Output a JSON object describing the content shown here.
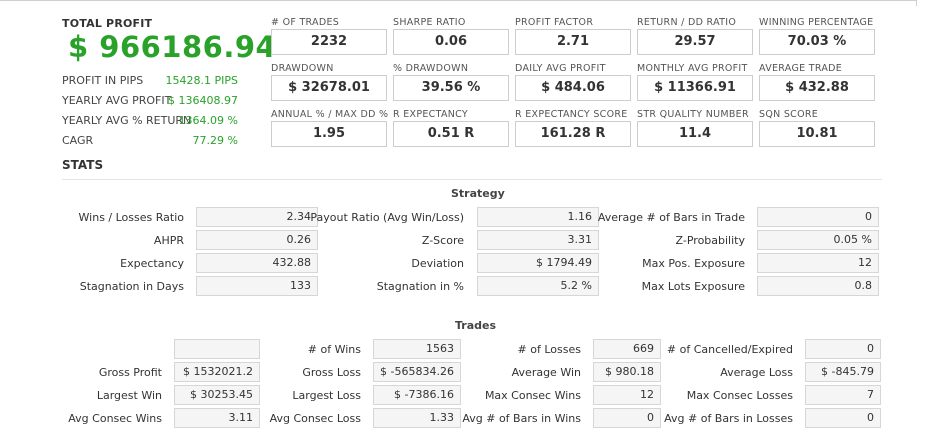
{
  "summary": {
    "total_profit_label": "TOTAL PROFIT",
    "total_profit_value": "$ 966186.94",
    "rows": [
      {
        "label": "PROFIT IN PIPS",
        "value": "15428.1 PIPS"
      },
      {
        "label": "YEARLY AVG PROFIT",
        "value": "$ 136408.97"
      },
      {
        "label": "YEARLY AVG % RETURN",
        "value": "1364.09 %"
      },
      {
        "label": "CAGR",
        "value": "77.29 %"
      }
    ]
  },
  "metrics": [
    {
      "label": "# OF TRADES",
      "value": "2232"
    },
    {
      "label": "SHARPE RATIO",
      "value": "0.06"
    },
    {
      "label": "PROFIT FACTOR",
      "value": "2.71"
    },
    {
      "label": "RETURN / DD RATIO",
      "value": "29.57"
    },
    {
      "label": "WINNING PERCENTAGE",
      "value": "70.03 %"
    },
    {
      "label": "DRAWDOWN",
      "value": "$ 32678.01"
    },
    {
      "label": "% DRAWDOWN",
      "value": "39.56 %"
    },
    {
      "label": "DAILY AVG PROFIT",
      "value": "$ 484.06"
    },
    {
      "label": "MONTHLY AVG PROFIT",
      "value": "$ 11366.91"
    },
    {
      "label": "AVERAGE TRADE",
      "value": "$ 432.88"
    },
    {
      "label": "ANNUAL % / MAX DD %",
      "value": "1.95"
    },
    {
      "label": "R EXPECTANCY",
      "value": "0.51 R"
    },
    {
      "label": "R EXPECTANCY SCORE",
      "value": "161.28 R"
    },
    {
      "label": "STR QUALITY NUMBER",
      "value": "11.4"
    },
    {
      "label": "SQN SCORE",
      "value": "10.81"
    }
  ],
  "stats_title": "STATS",
  "strategy": {
    "title": "Strategy",
    "rows": [
      [
        {
          "label": "Wins / Losses Ratio",
          "value": "2.34"
        },
        {
          "label": "Payout Ratio (Avg Win/Loss)",
          "value": "1.16"
        },
        {
          "label": "Average # of Bars in Trade",
          "value": "0"
        }
      ],
      [
        {
          "label": "AHPR",
          "value": "0.26"
        },
        {
          "label": "Z-Score",
          "value": "3.31"
        },
        {
          "label": "Z-Probability",
          "value": "0.05 %"
        }
      ],
      [
        {
          "label": "Expectancy",
          "value": "432.88"
        },
        {
          "label": "Deviation",
          "value": "$ 1794.49"
        },
        {
          "label": "Max Pos. Exposure",
          "value": "12"
        }
      ],
      [
        {
          "label": "Stagnation in Days",
          "value": "133"
        },
        {
          "label": "Stagnation in %",
          "value": "5.2 %"
        },
        {
          "label": "Max Lots Exposure",
          "value": "0.8"
        }
      ]
    ]
  },
  "trades": {
    "title": "Trades",
    "rows": [
      [
        {
          "label": "",
          "value": ""
        },
        {
          "label": "# of Wins",
          "value": "1563"
        },
        {
          "label": "# of Losses",
          "value": "669"
        },
        {
          "label": "# of Cancelled/Expired",
          "value": "0"
        }
      ],
      [
        {
          "label": "Gross Profit",
          "value": "$ 1532021.2"
        },
        {
          "label": "Gross Loss",
          "value": "$ -565834.26"
        },
        {
          "label": "Average Win",
          "value": "$ 980.18"
        },
        {
          "label": "Average Loss",
          "value": "$ -845.79"
        }
      ],
      [
        {
          "label": "Largest Win",
          "value": "$ 30253.45"
        },
        {
          "label": "Largest Loss",
          "value": "$ -7386.16"
        },
        {
          "label": "Max Consec Wins",
          "value": "12"
        },
        {
          "label": "Max Consec Losses",
          "value": "7"
        }
      ],
      [
        {
          "label": "Avg Consec Wins",
          "value": "3.11"
        },
        {
          "label": "Avg Consec Loss",
          "value": "1.33"
        },
        {
          "label": "Avg # of Bars in Wins",
          "value": "0"
        },
        {
          "label": "Avg # of Bars in Losses",
          "value": "0"
        }
      ]
    ]
  }
}
